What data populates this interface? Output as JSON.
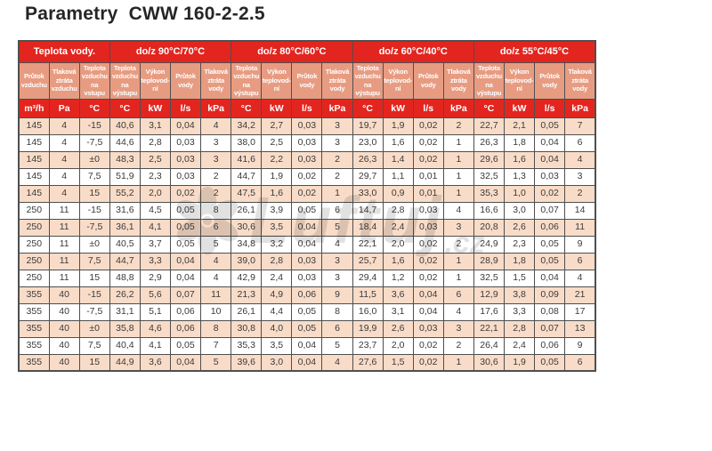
{
  "page": {
    "title": "Parametry  CWW 160-2-2.5"
  },
  "watermark": {
    "text": "Luftuj",
    "suffix": ".cz",
    "logo_icon": "fan-icon"
  },
  "colors": {
    "red": "#e3251f",
    "salmon": "#e79c82",
    "peach": "#f9dcc8",
    "border": "#4f4f4f",
    "text": "#3a3a3a",
    "watermark": "#c9c9c9"
  },
  "table": {
    "group_headers": [
      {
        "label": "Teplota vody.",
        "span": 3
      },
      {
        "label": "do/z 90°C/70°C",
        "span": 4
      },
      {
        "label": "do/z 80°C/60°C",
        "span": 4
      },
      {
        "label": "do/z 60°C/40°C",
        "span": 4
      },
      {
        "label": "do/z 55°C/45°C",
        "span": 4
      }
    ],
    "column_headers": [
      "Průtok vzduchu",
      "Tlaková ztráta vzduchu",
      "Teplota vzduchu na vstupu",
      "Teplota vzduchu na výstupu",
      "Výkon teplovod-ní",
      "Průtok vody",
      "Tlaková ztráta vody",
      "Teplota vzduchu na výstupu",
      "Výkon teplovod-ní",
      "Průtok vody",
      "Tlaková ztráta vody",
      "Teplota vzduchu na výstupu",
      "Výkon teplovod-ní",
      "Průtok vody",
      "Tlaková ztráta vody",
      "Teplota vzduchu na výstupu",
      "Výkon teplovod-ní",
      "Průtok vody",
      "Tlaková ztráta vody"
    ],
    "units": [
      "m³/h",
      "Pa",
      "°C",
      "°C",
      "kW",
      "l/s",
      "kPa",
      "°C",
      "kW",
      "l/s",
      "kPa",
      "°C",
      "kW",
      "l/s",
      "kPa",
      "°C",
      "kW",
      "l/s",
      "kPa"
    ],
    "rows": [
      [
        "145",
        "4",
        "-15",
        "40,6",
        "3,1",
        "0,04",
        "4",
        "34,2",
        "2,7",
        "0,03",
        "3",
        "19,7",
        "1,9",
        "0,02",
        "2",
        "22,7",
        "2,1",
        "0,05",
        "7"
      ],
      [
        "145",
        "4",
        "-7,5",
        "44,6",
        "2,8",
        "0,03",
        "3",
        "38,0",
        "2,5",
        "0,03",
        "3",
        "23,0",
        "1,6",
        "0,02",
        "1",
        "26,3",
        "1,8",
        "0,04",
        "6"
      ],
      [
        "145",
        "4",
        "±0",
        "48,3",
        "2,5",
        "0,03",
        "3",
        "41,6",
        "2,2",
        "0,03",
        "2",
        "26,3",
        "1,4",
        "0,02",
        "1",
        "29,6",
        "1,6",
        "0,04",
        "4"
      ],
      [
        "145",
        "4",
        "7,5",
        "51,9",
        "2,3",
        "0,03",
        "2",
        "44,7",
        "1,9",
        "0,02",
        "2",
        "29,7",
        "1,1",
        "0,01",
        "1",
        "32,5",
        "1,3",
        "0,03",
        "3"
      ],
      [
        "145",
        "4",
        "15",
        "55,2",
        "2,0",
        "0,02",
        "2",
        "47,5",
        "1,6",
        "0,02",
        "1",
        "33,0",
        "0,9",
        "0,01",
        "1",
        "35,3",
        "1,0",
        "0,02",
        "2"
      ],
      [
        "250",
        "11",
        "-15",
        "31,6",
        "4,5",
        "0,05",
        "8",
        "26,1",
        "3,9",
        "0,05",
        "6",
        "14,7",
        "2,8",
        "0,03",
        "4",
        "16,6",
        "3,0",
        "0,07",
        "14"
      ],
      [
        "250",
        "11",
        "-7,5",
        "36,1",
        "4,1",
        "0,05",
        "6",
        "30,6",
        "3,5",
        "0,04",
        "5",
        "18,4",
        "2,4",
        "0,03",
        "3",
        "20,8",
        "2,6",
        "0,06",
        "11"
      ],
      [
        "250",
        "11",
        "±0",
        "40,5",
        "3,7",
        "0,05",
        "5",
        "34,8",
        "3,2",
        "0,04",
        "4",
        "22,1",
        "2,0",
        "0,02",
        "2",
        "24,9",
        "2,3",
        "0,05",
        "9"
      ],
      [
        "250",
        "11",
        "7,5",
        "44,7",
        "3,3",
        "0,04",
        "4",
        "39,0",
        "2,8",
        "0,03",
        "3",
        "25,7",
        "1,6",
        "0,02",
        "1",
        "28,9",
        "1,8",
        "0,05",
        "6"
      ],
      [
        "250",
        "11",
        "15",
        "48,8",
        "2,9",
        "0,04",
        "4",
        "42,9",
        "2,4",
        "0,03",
        "3",
        "29,4",
        "1,2",
        "0,02",
        "1",
        "32,5",
        "1,5",
        "0,04",
        "4"
      ],
      [
        "355",
        "40",
        "-15",
        "26,2",
        "5,6",
        "0,07",
        "11",
        "21,3",
        "4,9",
        "0,06",
        "9",
        "11,5",
        "3,6",
        "0,04",
        "6",
        "12,9",
        "3,8",
        "0,09",
        "21"
      ],
      [
        "355",
        "40",
        "-7,5",
        "31,1",
        "5,1",
        "0,06",
        "10",
        "26,1",
        "4,4",
        "0,05",
        "8",
        "16,0",
        "3,1",
        "0,04",
        "4",
        "17,6",
        "3,3",
        "0,08",
        "17"
      ],
      [
        "355",
        "40",
        "±0",
        "35,8",
        "4,6",
        "0,06",
        "8",
        "30,8",
        "4,0",
        "0,05",
        "6",
        "19,9",
        "2,6",
        "0,03",
        "3",
        "22,1",
        "2,8",
        "0,07",
        "13"
      ],
      [
        "355",
        "40",
        "7,5",
        "40,4",
        "4,1",
        "0,05",
        "7",
        "35,3",
        "3,5",
        "0,04",
        "5",
        "23,7",
        "2,0",
        "0,02",
        "2",
        "26,4",
        "2,4",
        "0,06",
        "9"
      ],
      [
        "355",
        "40",
        "15",
        "44,9",
        "3,6",
        "0,04",
        "5",
        "39,6",
        "3,0",
        "0,04",
        "4",
        "27,6",
        "1,5",
        "0,02",
        "1",
        "30,6",
        "1,9",
        "0,05",
        "6"
      ]
    ]
  }
}
